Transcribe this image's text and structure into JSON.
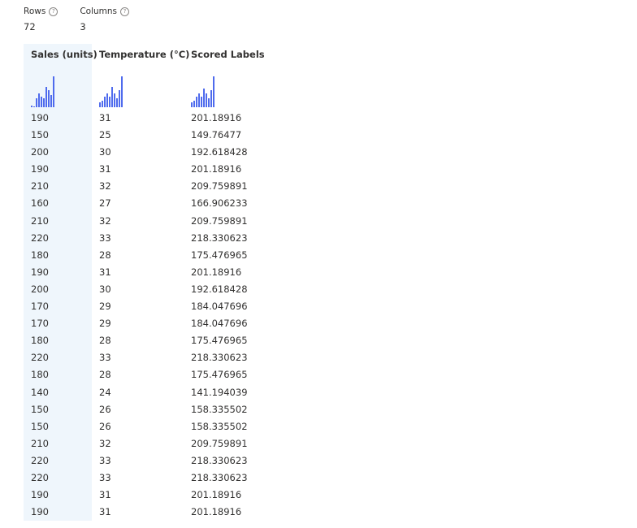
{
  "summary": {
    "rows_label": "Rows",
    "rows_value": "72",
    "columns_label": "Columns",
    "columns_value": "3"
  },
  "columns": [
    {
      "header": "Sales (units)",
      "histogram": [
        2,
        0,
        10,
        16,
        12,
        10,
        24,
        20,
        14,
        36
      ]
    },
    {
      "header": "Temperature (°C)",
      "histogram": [
        6,
        8,
        12,
        16,
        12,
        24,
        16,
        10,
        20,
        36
      ]
    },
    {
      "header": "Scored Labels",
      "histogram": [
        6,
        8,
        12,
        16,
        12,
        22,
        16,
        10,
        20,
        36
      ]
    }
  ],
  "rows": [
    [
      "190",
      "31",
      "201.18916"
    ],
    [
      "150",
      "25",
      "149.76477"
    ],
    [
      "200",
      "30",
      "192.618428"
    ],
    [
      "190",
      "31",
      "201.18916"
    ],
    [
      "210",
      "32",
      "209.759891"
    ],
    [
      "160",
      "27",
      "166.906233"
    ],
    [
      "210",
      "32",
      "209.759891"
    ],
    [
      "220",
      "33",
      "218.330623"
    ],
    [
      "180",
      "28",
      "175.476965"
    ],
    [
      "190",
      "31",
      "201.18916"
    ],
    [
      "200",
      "30",
      "192.618428"
    ],
    [
      "170",
      "29",
      "184.047696"
    ],
    [
      "170",
      "29",
      "184.047696"
    ],
    [
      "180",
      "28",
      "175.476965"
    ],
    [
      "220",
      "33",
      "218.330623"
    ],
    [
      "180",
      "28",
      "175.476965"
    ],
    [
      "140",
      "24",
      "141.194039"
    ],
    [
      "150",
      "26",
      "158.335502"
    ],
    [
      "150",
      "26",
      "158.335502"
    ],
    [
      "210",
      "32",
      "209.759891"
    ],
    [
      "220",
      "33",
      "218.330623"
    ],
    [
      "220",
      "33",
      "218.330623"
    ],
    [
      "190",
      "31",
      "201.18916"
    ],
    [
      "190",
      "31",
      "201.18916"
    ]
  ],
  "colors": {
    "accent": "#4f6bed",
    "selected_column_bg": "#eff6fc"
  },
  "icons": {
    "help": "help-circle-icon"
  }
}
